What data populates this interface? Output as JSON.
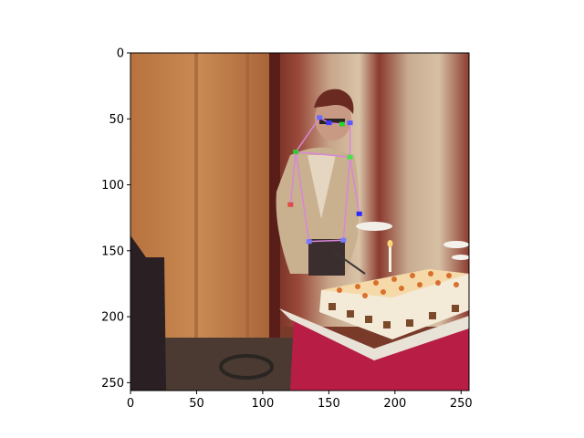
{
  "figure": {
    "image_extent": {
      "x_min": 0,
      "x_max": 256,
      "y_min": 0,
      "y_max": 256
    },
    "x_ticks": [
      {
        "value": 0,
        "label": "0"
      },
      {
        "value": 50,
        "label": "50"
      },
      {
        "value": 100,
        "label": "100"
      },
      {
        "value": 150,
        "label": "150"
      },
      {
        "value": 200,
        "label": "200"
      },
      {
        "value": 250,
        "label": "250"
      }
    ],
    "y_ticks": [
      {
        "value": 0,
        "label": "0"
      },
      {
        "value": 50,
        "label": "50"
      },
      {
        "value": 100,
        "label": "100"
      },
      {
        "value": 150,
        "label": "150"
      },
      {
        "value": 200,
        "label": "200"
      },
      {
        "value": 250,
        "label": "250"
      }
    ],
    "pose": {
      "color": "#d986d9",
      "keypoints": [
        {
          "name": "head-top",
          "x": 143,
          "y": 49
        },
        {
          "name": "eye-left",
          "x": 150,
          "y": 53
        },
        {
          "name": "eye-right",
          "x": 160,
          "y": 54
        },
        {
          "name": "ear-right",
          "x": 166,
          "y": 53
        },
        {
          "name": "shoulder-left",
          "x": 125,
          "y": 75
        },
        {
          "name": "shoulder-right",
          "x": 166,
          "y": 79
        },
        {
          "name": "hip-left",
          "x": 135,
          "y": 143
        },
        {
          "name": "hip-right",
          "x": 161,
          "y": 142
        },
        {
          "name": "wrist-right",
          "x": 173,
          "y": 122
        },
        {
          "name": "elbow-left",
          "x": 121,
          "y": 115
        }
      ]
    }
  }
}
